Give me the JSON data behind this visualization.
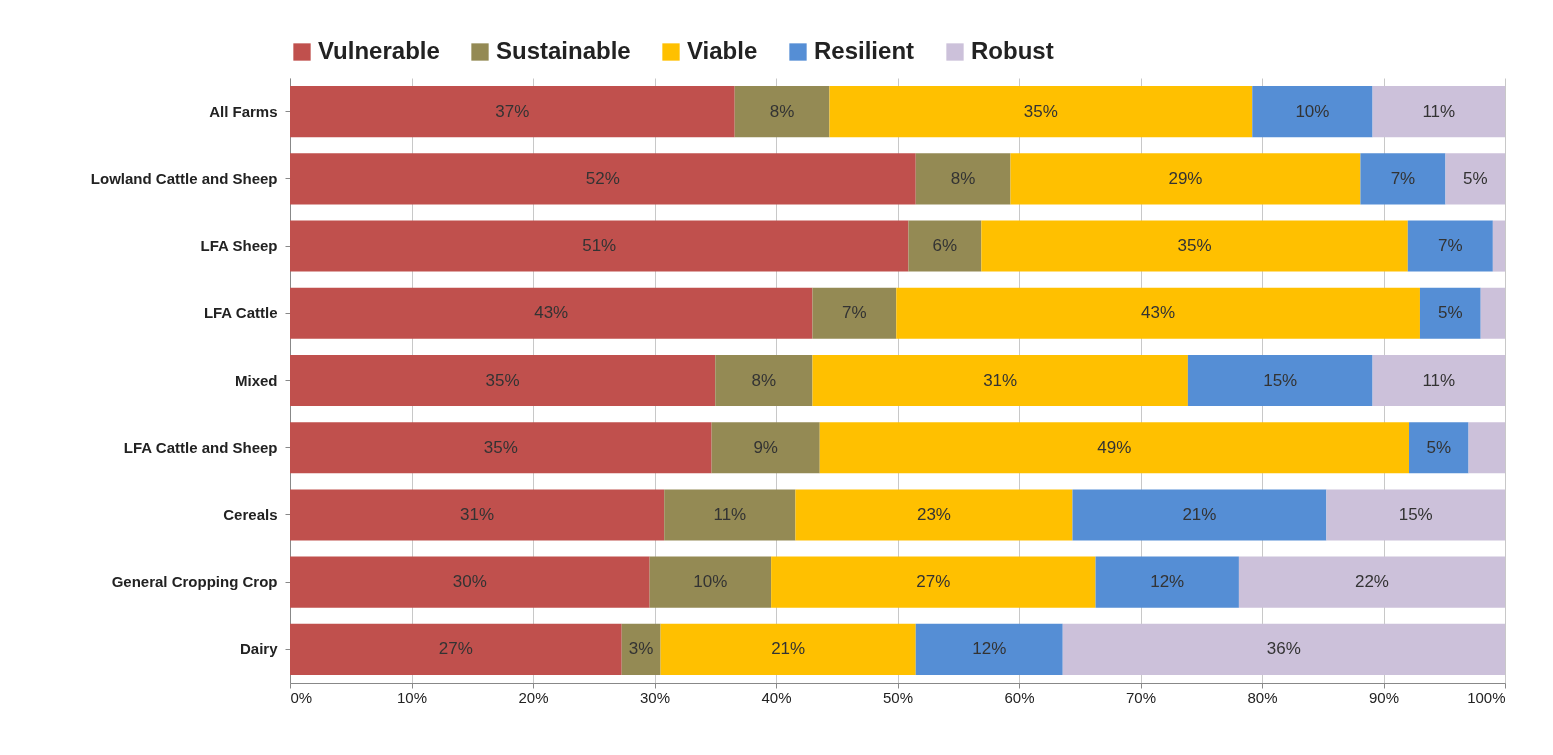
{
  "chart_data": {
    "type": "bar",
    "orientation": "horizontal",
    "stacked": true,
    "grid": "x",
    "legend": "top",
    "categories": [
      "All Farms",
      "Lowland Cattle and Sheep",
      "LFA Sheep",
      "LFA Cattle",
      "Mixed",
      "LFA Cattle and Sheep",
      "Cereals",
      "General Cropping Crop",
      "Dairy"
    ],
    "xlim": [
      0,
      100
    ],
    "xticks": [
      {
        "value": 0,
        "label": "0%"
      },
      {
        "value": 10,
        "label": "10%"
      },
      {
        "value": 20,
        "label": "20%"
      },
      {
        "value": 30,
        "label": "30%"
      },
      {
        "value": 40,
        "label": "40%"
      },
      {
        "value": 50,
        "label": "50%"
      },
      {
        "value": 60,
        "label": "60%"
      },
      {
        "value": 70,
        "label": "70%"
      },
      {
        "value": 80,
        "label": "80%"
      },
      {
        "value": 90,
        "label": "90%"
      },
      {
        "value": 100,
        "label": "100%"
      }
    ],
    "series": [
      {
        "name": "Vulnerable",
        "color": "#c0504d",
        "values": [
          36.6,
          51.5,
          50.9,
          43.0,
          35.0,
          34.7,
          30.8,
          29.6,
          27.3
        ],
        "value_labels": [
          "37%",
          "52%",
          "51%",
          "43%",
          "35%",
          "35%",
          "31%",
          "30%",
          "27%"
        ]
      },
      {
        "name": "Sustainable",
        "color": "#948a54",
        "values": [
          7.8,
          7.8,
          6.0,
          6.9,
          8.0,
          8.9,
          10.8,
          10.0,
          3.2
        ],
        "value_labels": [
          "8%",
          "8%",
          "6%",
          "7%",
          "8%",
          "9%",
          "11%",
          "10%",
          "3%"
        ]
      },
      {
        "name": "Viable",
        "color": "#ffc000",
        "values": [
          34.8,
          28.8,
          35.1,
          43.1,
          30.9,
          48.5,
          22.8,
          26.7,
          21.0
        ],
        "value_labels": [
          "35%",
          "29%",
          "35%",
          "43%",
          "31%",
          "49%",
          "23%",
          "27%",
          "21%"
        ]
      },
      {
        "name": "Resilient",
        "color": "#558ed5",
        "values": [
          9.9,
          7.0,
          7.0,
          5.0,
          15.2,
          4.9,
          20.9,
          11.8,
          12.1
        ],
        "value_labels": [
          "10%",
          "7%",
          "7%",
          "5%",
          "15%",
          "5%",
          "21%",
          "12%",
          "12%"
        ]
      },
      {
        "name": "Robust",
        "color": "#ccc1da",
        "values": [
          10.9,
          4.9,
          1.0,
          2.0,
          10.9,
          3.0,
          14.7,
          21.9,
          36.4
        ],
        "value_labels": [
          "11%",
          "5%",
          null,
          null,
          "11%",
          null,
          "15%",
          "22%",
          "36%"
        ]
      }
    ]
  }
}
